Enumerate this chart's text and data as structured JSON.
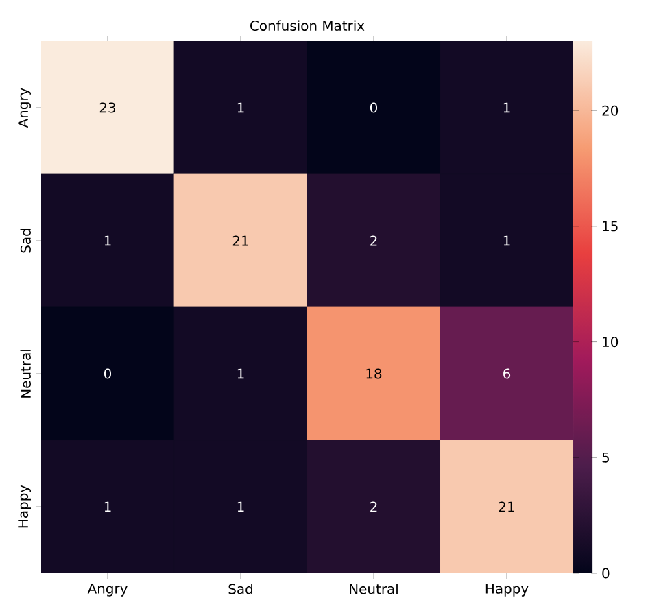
{
  "chart_data": {
    "type": "heatmap",
    "title": "Confusion Matrix",
    "categories": [
      "Angry",
      "Sad",
      "Neutral",
      "Happy"
    ],
    "y_categories": [
      "Angry",
      "Sad",
      "Neutral",
      "Happy"
    ],
    "cells": [
      [
        23,
        1,
        0,
        1
      ],
      [
        1,
        21,
        2,
        1
      ],
      [
        0,
        1,
        18,
        6
      ],
      [
        1,
        1,
        2,
        21
      ]
    ],
    "clim": [
      0,
      23
    ],
    "cticks": [
      0,
      5,
      10,
      15,
      20
    ],
    "data_labels": true
  }
}
